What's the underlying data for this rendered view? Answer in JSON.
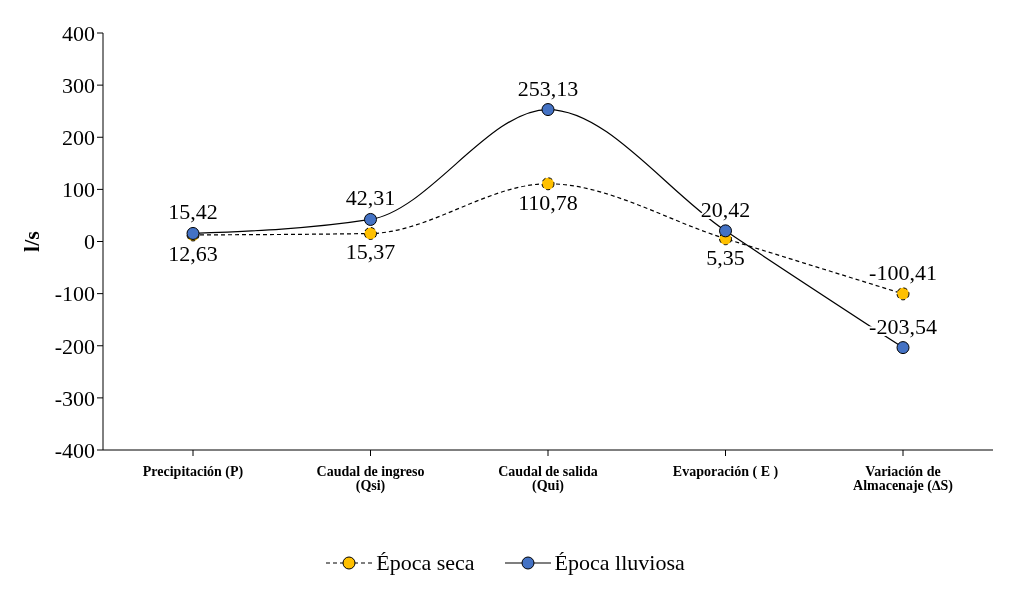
{
  "chart_data": {
    "type": "line",
    "ylabel": "l/s",
    "categories": [
      "Precipitación (P)",
      "Caudal de ingreso (Qsi)",
      "Caudal de salida (Qui)",
      "Evaporación ( E )",
      "Variación de Almacenaje (∆S)"
    ],
    "series": [
      {
        "name": "Época seca",
        "color": "#ffc000",
        "line_style": "dashed",
        "values": [
          12.63,
          15.37,
          110.78,
          5.35,
          -100.41
        ],
        "value_labels": [
          "12,63",
          "15,37",
          "110,78",
          "5,35",
          "-100,41"
        ]
      },
      {
        "name": "Época lluviosa",
        "color": "#4472c4",
        "line_style": "solid",
        "values": [
          15.42,
          42.31,
          253.13,
          20.42,
          -203.54
        ],
        "value_labels": [
          "15,42",
          "42,31",
          "253,13",
          "20,42",
          "-203,54"
        ]
      }
    ],
    "ylim": [
      -400,
      400
    ],
    "yticks": [
      -400,
      -300,
      -200,
      -100,
      0,
      100,
      200,
      300,
      400
    ],
    "legend": "bottom",
    "marker": "circle"
  }
}
